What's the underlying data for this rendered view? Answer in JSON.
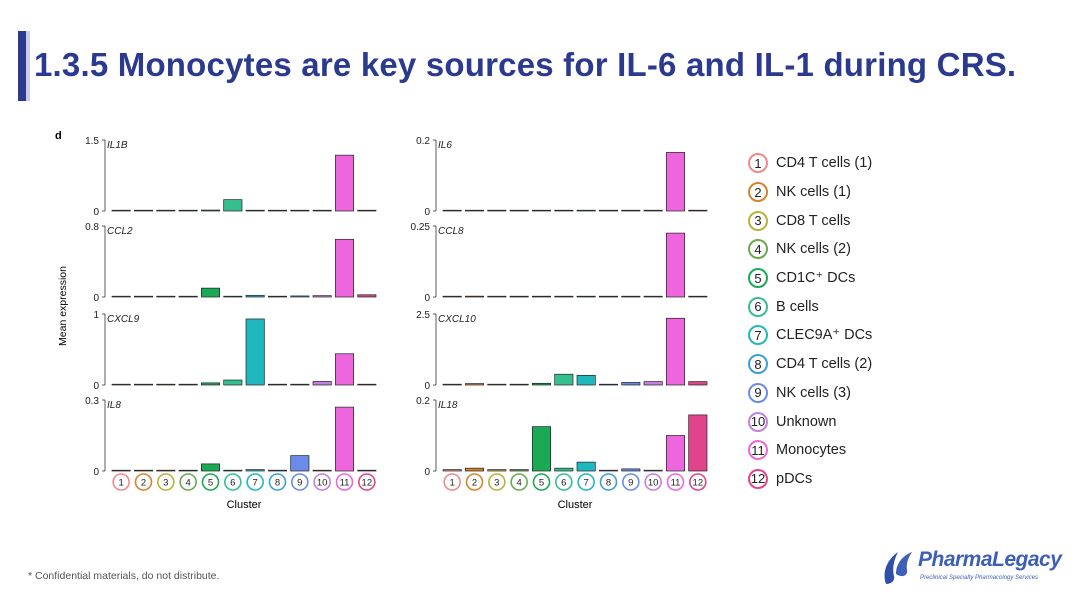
{
  "slide": {
    "title": "1.3.5 Monocytes are key sources for IL-6 and IL-1 during CRS.",
    "footer": "* Confidential materials, do not distribute.",
    "logo_text": "PharmaLegacy",
    "logo_subtitle": "Preclinical Specialty Pharmacology Services"
  },
  "figure": {
    "panel_label": "d",
    "ylabel": "Mean expression",
    "xlabel": "Cluster"
  },
  "clusters": [
    {
      "id": "1",
      "name": "CD4 T cells (1)",
      "color": "#f08a8a"
    },
    {
      "id": "2",
      "name": "NK cells (1)",
      "color": "#d9822b"
    },
    {
      "id": "3",
      "name": "CD8 T cells",
      "color": "#b8b23a"
    },
    {
      "id": "4",
      "name": "NK cells (2)",
      "color": "#6aa84f"
    },
    {
      "id": "5",
      "name": "CD1C⁺ DCs",
      "color": "#1aaa55"
    },
    {
      "id": "6",
      "name": "B cells",
      "color": "#35bf8f"
    },
    {
      "id": "7",
      "name": "CLEC9A⁺ DCs",
      "color": "#20b8bf"
    },
    {
      "id": "8",
      "name": "CD4 T cells (2)",
      "color": "#3a9fd8"
    },
    {
      "id": "9",
      "name": "NK cells (3)",
      "color": "#6a8ce8"
    },
    {
      "id": "10",
      "name": "Unknown",
      "color": "#c77ee0"
    },
    {
      "id": "11",
      "name": "Monocytes",
      "color": "#ee66dd"
    },
    {
      "id": "12",
      "name": "pDCs",
      "color": "#e0458c"
    }
  ],
  "chart_data": [
    {
      "type": "bar",
      "gene": "IL1B",
      "ylim": [
        0,
        1.5
      ],
      "ytick_labels": [
        "0",
        "1.5"
      ],
      "categories": [
        "1",
        "2",
        "3",
        "4",
        "5",
        "6",
        "7",
        "8",
        "9",
        "10",
        "11",
        "12"
      ],
      "values": [
        0.005,
        0.01,
        0.004,
        0.004,
        0.02,
        0.24,
        0.015,
        0.003,
        0.003,
        0.005,
        1.18,
        0.004
      ]
    },
    {
      "type": "bar",
      "gene": "IL6",
      "ylim": [
        0,
        0.2
      ],
      "ytick_labels": [
        "0",
        "0.2"
      ],
      "categories": [
        "1",
        "2",
        "3",
        "4",
        "5",
        "6",
        "7",
        "8",
        "9",
        "10",
        "11",
        "12"
      ],
      "values": [
        0.0005,
        0.0005,
        0.0005,
        0.0005,
        0.0005,
        0.0005,
        0.0005,
        0.0005,
        0.0005,
        0.0005,
        0.165,
        0.0005
      ]
    },
    {
      "type": "bar",
      "gene": "CCL2",
      "ylim": [
        0,
        0.8
      ],
      "ytick_labels": [
        "0",
        "0.8"
      ],
      "categories": [
        "1",
        "2",
        "3",
        "4",
        "5",
        "6",
        "7",
        "8",
        "9",
        "10",
        "11",
        "12"
      ],
      "values": [
        0.004,
        0.006,
        0.002,
        0.002,
        0.1,
        0.008,
        0.018,
        0.002,
        0.012,
        0.015,
        0.65,
        0.025
      ]
    },
    {
      "type": "bar",
      "gene": "CCL8",
      "ylim": [
        0,
        0.25
      ],
      "ytick_labels": [
        "0",
        "0.25"
      ],
      "categories": [
        "1",
        "2",
        "3",
        "4",
        "5",
        "6",
        "7",
        "8",
        "9",
        "10",
        "11",
        "12"
      ],
      "values": [
        0.001,
        0.003,
        0.001,
        0.001,
        0.001,
        0.001,
        0.001,
        0.001,
        0.001,
        0.001,
        0.225,
        0.001
      ]
    },
    {
      "type": "bar",
      "gene": "CXCL9",
      "ylim": [
        0,
        1
      ],
      "ytick_labels": [
        "0",
        "1"
      ],
      "categories": [
        "1",
        "2",
        "3",
        "4",
        "5",
        "6",
        "7",
        "8",
        "9",
        "10",
        "11",
        "12"
      ],
      "values": [
        0.01,
        0.01,
        0.01,
        0.01,
        0.03,
        0.07,
        0.93,
        0.005,
        0.01,
        0.05,
        0.44,
        0.01
      ]
    },
    {
      "type": "bar",
      "gene": "CXCL10",
      "ylim": [
        0,
        2.5
      ],
      "ytick_labels": [
        "0",
        "2.5"
      ],
      "categories": [
        "1",
        "2",
        "3",
        "4",
        "5",
        "6",
        "7",
        "8",
        "9",
        "10",
        "11",
        "12"
      ],
      "values": [
        0.02,
        0.05,
        0.02,
        0.02,
        0.06,
        0.38,
        0.34,
        0.01,
        0.09,
        0.12,
        2.35,
        0.12
      ]
    },
    {
      "type": "bar",
      "gene": "IL8",
      "ylim": [
        0,
        0.3
      ],
      "ytick_labels": [
        "0",
        "0.3"
      ],
      "categories": [
        "1",
        "2",
        "3",
        "4",
        "5",
        "6",
        "7",
        "8",
        "9",
        "10",
        "11",
        "12"
      ],
      "values": [
        0.002,
        0.003,
        0.001,
        0.002,
        0.03,
        0.002,
        0.006,
        0.001,
        0.065,
        0.002,
        0.27,
        0.001
      ]
    },
    {
      "type": "bar",
      "gene": "IL18",
      "ylim": [
        0,
        0.2
      ],
      "ytick_labels": [
        "0",
        "0.2"
      ],
      "categories": [
        "1",
        "2",
        "3",
        "4",
        "5",
        "6",
        "7",
        "8",
        "9",
        "10",
        "11",
        "12"
      ],
      "values": [
        0.004,
        0.008,
        0.004,
        0.004,
        0.125,
        0.008,
        0.025,
        0.001,
        0.006,
        0.002,
        0.1,
        0.158
      ]
    }
  ]
}
